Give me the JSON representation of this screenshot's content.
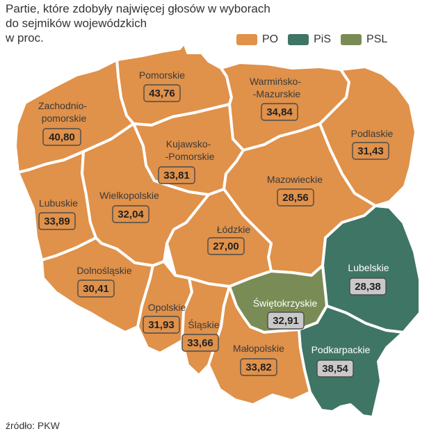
{
  "title_lines": [
    "Partie, które zdobyły najwięcej głosów w wyborach",
    "do sejmików wojewódzkich",
    "w proc."
  ],
  "legend": [
    {
      "label": "PO",
      "color": "#e0914a"
    },
    {
      "label": "PiS",
      "color": "#3f7565"
    },
    {
      "label": "PSL",
      "color": "#7a8c55"
    }
  ],
  "source": "źródło: PKW",
  "regions": {
    "pomorskie": {
      "name_lines": [
        "Pomorskie"
      ],
      "value": "43,76",
      "party": "PO"
    },
    "zachodniopomorskie": {
      "name_lines": [
        "Zachodnio-",
        "pomorskie"
      ],
      "value": "40,80",
      "party": "PO"
    },
    "warminsko_mazurskie": {
      "name_lines": [
        "Warmińsko-",
        "-Mazurskie"
      ],
      "value": "34,84",
      "party": "PO"
    },
    "podlaskie": {
      "name_lines": [
        "Podlaskie"
      ],
      "value": "31,43",
      "party": "PO"
    },
    "kujawsko_pomorskie": {
      "name_lines": [
        "Kujawsko-",
        "-Pomorskie"
      ],
      "value": "33,81",
      "party": "PO"
    },
    "lubuskie": {
      "name_lines": [
        "Lubuskie"
      ],
      "value": "33,89",
      "party": "PO"
    },
    "wielkopolskie": {
      "name_lines": [
        "Wielkopolskie"
      ],
      "value": "32,04",
      "party": "PO"
    },
    "mazowieckie": {
      "name_lines": [
        "Mazowieckie"
      ],
      "value": "28,56",
      "party": "PO"
    },
    "lodzkie": {
      "name_lines": [
        "Łódzkie"
      ],
      "value": "27,00",
      "party": "PO"
    },
    "lubelskie": {
      "name_lines": [
        "Lubelskie"
      ],
      "value": "28,38",
      "party": "PiS"
    },
    "dolnoslaskie": {
      "name_lines": [
        "Dolnośląskie"
      ],
      "value": "30,41",
      "party": "PO"
    },
    "opolskie": {
      "name_lines": [
        "Opolskie"
      ],
      "value": "31,93",
      "party": "PO"
    },
    "slaskie": {
      "name_lines": [
        "Śląskie"
      ],
      "value": "33,66",
      "party": "PO"
    },
    "swietokrzyskie": {
      "name_lines": [
        "Świętokrzyskie"
      ],
      "value": "32,91",
      "party": "PSL"
    },
    "malopolskie": {
      "name_lines": [
        "Małopolskie"
      ],
      "value": "33,82",
      "party": "PO"
    },
    "podkarpackie": {
      "name_lines": [
        "Podkarpackie"
      ],
      "value": "38,54",
      "party": "PiS"
    }
  }
}
